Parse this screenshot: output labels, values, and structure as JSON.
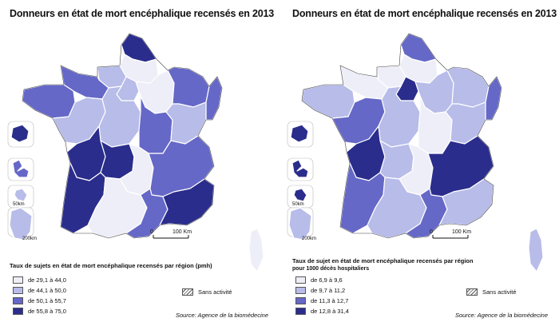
{
  "colors": {
    "class1": "#eeeef8",
    "class2": "#b8bce9",
    "class3": "#6568c7",
    "class4": "#2b2d8c",
    "border": "#ffffff",
    "outline": "#444444"
  },
  "scale": {
    "zero": "0",
    "distance": "100 Km"
  },
  "insets": {
    "scale_small": "50km",
    "scale_large": "200km"
  },
  "sans_activite": "Sans activité",
  "source": "Source: Agence de la biomédecine",
  "left": {
    "title": "Donneurs en état de mort encéphalique recensés en 2013",
    "legend_title": "Taux de sujets en état de mort encéphalique recensés par région (pmh)",
    "legend": [
      "de 29,1 à 44,0",
      "de 44,1 à 50,0",
      "de 50,1 à 55,7",
      "de 55,8 à 75,0"
    ]
  },
  "right": {
    "title": "Donneurs en état de mort encéphalique recensés en 2013",
    "legend_title": "Taux de sujet en état de mort encéphalique recensés par région",
    "legend_subtitle": "pour 1000 décès hospitaliers",
    "legend": [
      "de 6,9 à 9,6",
      "de 9,7 à 11,2",
      "de 11,3 à 12,7",
      "de 12,8 à 31,4"
    ]
  },
  "map_data": {
    "left": {
      "nord_pas_de_calais": 4,
      "picardie": 1,
      "haute_normandie": 2,
      "basse_normandie": 3,
      "bretagne": 3,
      "ile_de_france": 2,
      "champagne_ardenne": 1,
      "lorraine": 3,
      "alsace": 3,
      "pays_de_la_loire": 2,
      "centre": 2,
      "bourgogne": 3,
      "franche_comte": 2,
      "poitou_charentes": 4,
      "limousin": 4,
      "auvergne": 1,
      "rhone_alpes": 3,
      "aquitaine": 4,
      "midi_pyrenees": 1,
      "languedoc_roussillon": 3,
      "paca": 4,
      "corse": 1,
      "guadeloupe": 3,
      "martinique": 2,
      "guyane": 2,
      "reunion": 4
    },
    "right": {
      "nord_pas_de_calais": 3,
      "picardie": 1,
      "haute_normandie": 1,
      "basse_normandie": 1,
      "bretagne": 2,
      "ile_de_france": 4,
      "champagne_ardenne": 2,
      "lorraine": 2,
      "alsace": 3,
      "pays_de_la_loire": 3,
      "centre": 2,
      "bourgogne": 1,
      "franche_comte": 2,
      "poitou_charentes": 4,
      "limousin": 2,
      "auvergne": 1,
      "rhone_alpes": 4,
      "aquitaine": 3,
      "midi_pyrenees": 2,
      "languedoc_roussillon": 3,
      "paca": 2,
      "corse": 2,
      "guadeloupe": 4,
      "martinique": 4,
      "guyane": 2,
      "reunion": 4
    }
  }
}
